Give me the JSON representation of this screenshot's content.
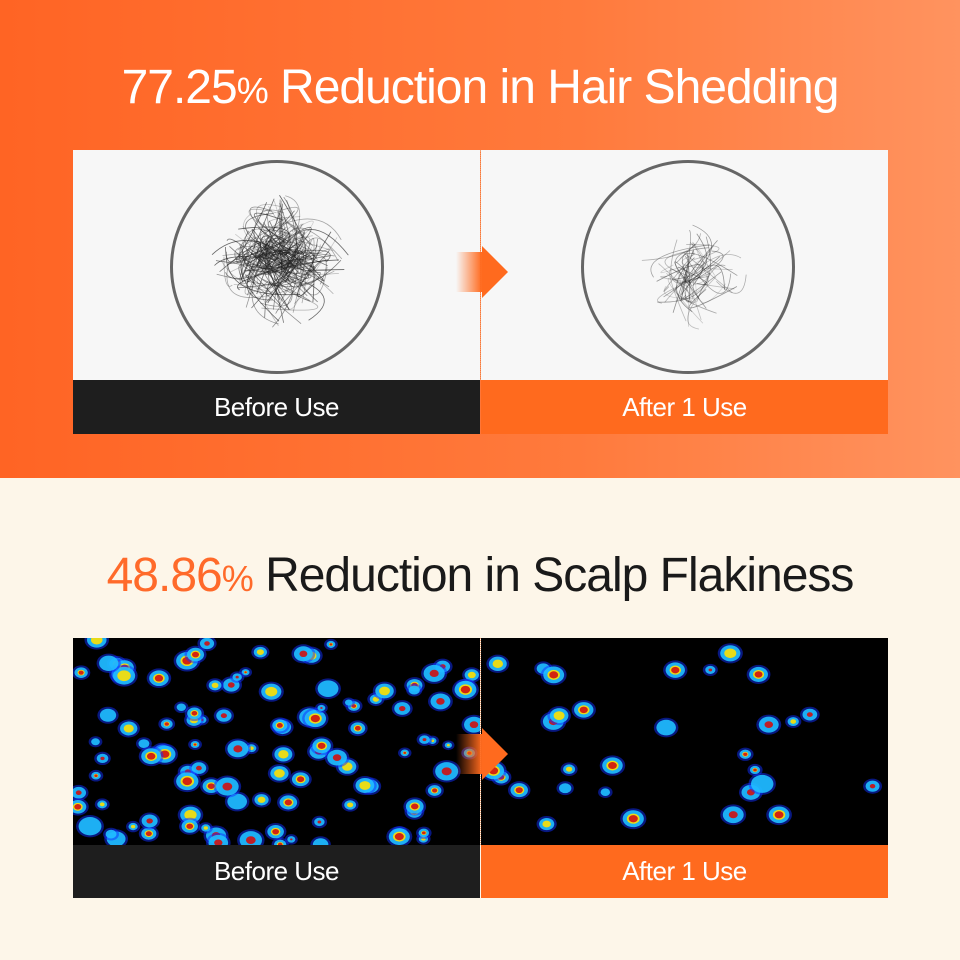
{
  "section1": {
    "title_number": "77.25",
    "title_percent": "%",
    "title_text": " Reduction in Hair Shedding",
    "before_label": "Before Use",
    "after_label": "After 1 Use",
    "before_label_color": "#1e1e1e",
    "after_label_color": "#ff6a1e"
  },
  "section2": {
    "title_number": "48.86",
    "title_percent": "%",
    "title_text": " Reduction in Scalp Flakiness",
    "before_label": "Before Use",
    "after_label": "After 1 Use",
    "before_label_color": "#1e1e1e",
    "after_label_color": "#ff6a1e"
  },
  "colors": {
    "accent": "#ff6a2a",
    "cream": "#fdf6e9"
  }
}
